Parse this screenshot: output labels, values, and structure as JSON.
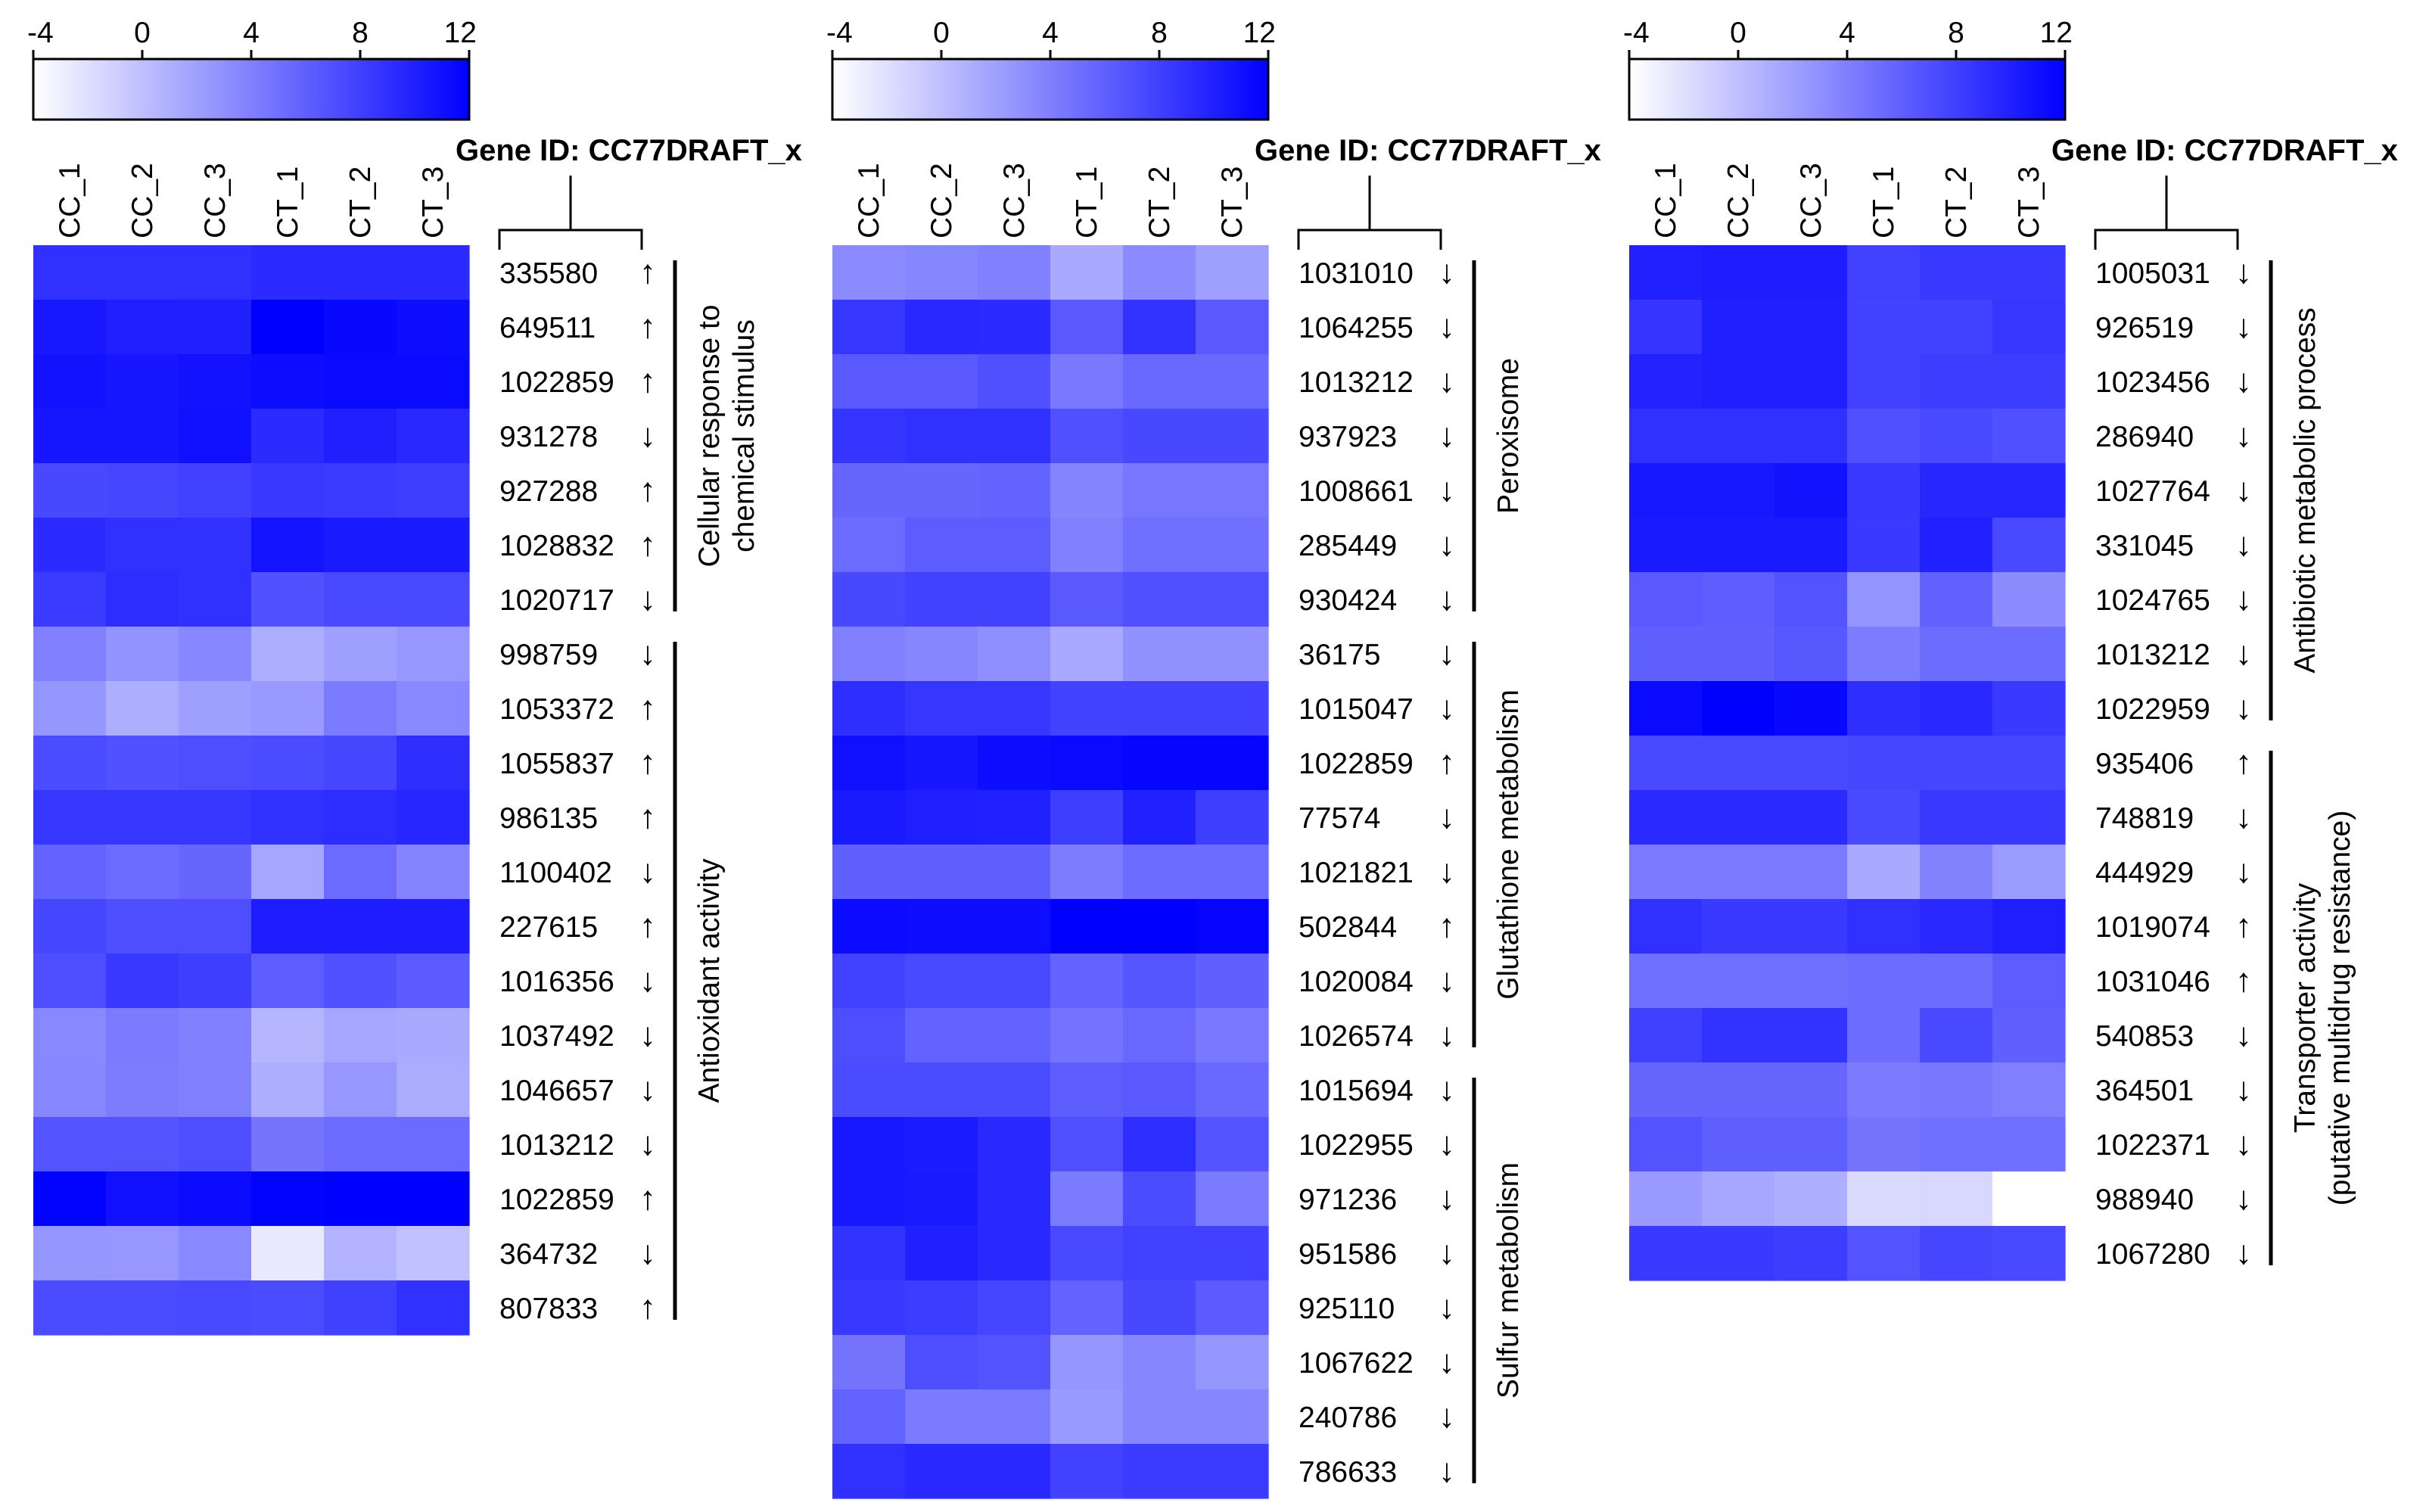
{
  "chart_data": [
    {
      "type": "heatmap",
      "colorbar": {
        "ticks": [
          "-4",
          "0",
          "4",
          "8",
          "12"
        ],
        "min": -4,
        "max": 12,
        "low_color": "#ffffff",
        "high_color": "#0000ff"
      },
      "columns": [
        "CC_1",
        "CC_2",
        "CC_3",
        "CT_1",
        "CT_2",
        "CT_3"
      ],
      "id_header": "Gene ID: CC77DRAFT_x",
      "rows": [
        {
          "id": "335580",
          "arrow": "↑",
          "values": [
            8.9,
            8.9,
            8.9,
            9.3,
            9.3,
            9.3
          ]
        },
        {
          "id": "649511",
          "arrow": "↑",
          "values": [
            10.5,
            10.1,
            10.0,
            12.5,
            11.5,
            11.1
          ]
        },
        {
          "id": "1022859",
          "arrow": "↑",
          "values": [
            10.9,
            10.6,
            10.9,
            11.2,
            11.4,
            11.4
          ]
        },
        {
          "id": "931278",
          "arrow": "↓",
          "values": [
            10.6,
            10.6,
            11.0,
            9.3,
            10.0,
            9.4
          ]
        },
        {
          "id": "927288",
          "arrow": "↑",
          "values": [
            7.5,
            7.6,
            7.9,
            8.5,
            8.3,
            8.1
          ]
        },
        {
          "id": "1028832",
          "arrow": "↑",
          "values": [
            9.3,
            9.0,
            9.0,
            10.8,
            10.4,
            10.4
          ]
        },
        {
          "id": "1020717",
          "arrow": "↓",
          "values": [
            8.3,
            9.2,
            8.9,
            6.9,
            7.4,
            7.4
          ]
        },
        {
          "id": "998759",
          "arrow": "↓",
          "values": [
            3.9,
            2.8,
            3.5,
            1.1,
            2.0,
            2.5
          ]
        },
        {
          "id": "1053372",
          "arrow": "↑",
          "values": [
            2.6,
            1.1,
            2.0,
            2.4,
            4.3,
            3.4
          ]
        },
        {
          "id": "1055837",
          "arrow": "↑",
          "values": [
            7.3,
            6.9,
            7.1,
            7.3,
            7.6,
            9.1
          ]
        },
        {
          "id": "986135",
          "arrow": "↑",
          "values": [
            8.6,
            8.6,
            8.6,
            9.0,
            9.2,
            9.6
          ]
        },
        {
          "id": "1100402",
          "arrow": "↓",
          "values": [
            5.8,
            5.3,
            5.6,
            1.6,
            5.3,
            3.7
          ]
        },
        {
          "id": "227615",
          "arrow": "↑",
          "values": [
            7.6,
            7.1,
            7.1,
            10.2,
            10.2,
            10.2
          ]
        },
        {
          "id": "1016356",
          "arrow": "↓",
          "values": [
            7.1,
            8.5,
            8.1,
            6.2,
            6.9,
            6.3
          ]
        },
        {
          "id": "1037492",
          "arrow": "↓",
          "values": [
            3.4,
            4.3,
            3.9,
            0.6,
            1.6,
            1.4
          ]
        },
        {
          "id": "1046657",
          "arrow": "↓",
          "values": [
            3.5,
            4.2,
            4.0,
            1.1,
            2.5,
            1.2
          ]
        },
        {
          "id": "1013212",
          "arrow": "↓",
          "values": [
            6.7,
            6.7,
            7.1,
            4.7,
            5.3,
            5.3
          ]
        },
        {
          "id": "1022859",
          "arrow": "↑",
          "values": [
            11.9,
            11.0,
            11.3,
            11.9,
            12.3,
            12.3
          ]
        },
        {
          "id": "364732",
          "arrow": "↓",
          "values": [
            2.6,
            2.5,
            3.4,
            -2.6,
            0.8,
            -0.1
          ]
        },
        {
          "id": "807833",
          "arrow": "↑",
          "values": [
            7.3,
            7.3,
            7.4,
            7.3,
            8.0,
            9.0
          ]
        }
      ],
      "groups": [
        {
          "lines": [
            "Cellular response to",
            "chemical stimulus"
          ],
          "start": 0,
          "end": 6
        },
        {
          "lines": [
            "Antioxidant activity"
          ],
          "start": 7,
          "end": 19
        }
      ]
    },
    {
      "type": "heatmap",
      "colorbar": {
        "ticks": [
          "-4",
          "0",
          "4",
          "8",
          "12"
        ],
        "min": -4,
        "max": 12,
        "low_color": "#ffffff",
        "high_color": "#0000ff"
      },
      "columns": [
        "CC_1",
        "CC_2",
        "CC_3",
        "CT_1",
        "CT_2",
        "CT_3"
      ],
      "id_header": "Gene ID: CC77DRAFT_x",
      "rows": [
        {
          "id": "1031010",
          "arrow": "↓",
          "values": [
            3.3,
            3.6,
            3.9,
            1.4,
            3.3,
            2.0
          ]
        },
        {
          "id": "1064255",
          "arrow": "↓",
          "values": [
            8.6,
            9.4,
            9.3,
            6.4,
            8.8,
            6.4
          ]
        },
        {
          "id": "1013212",
          "arrow": "↓",
          "values": [
            6.4,
            6.4,
            7.0,
            4.4,
            5.4,
            5.4
          ]
        },
        {
          "id": "937923",
          "arrow": "↓",
          "values": [
            8.7,
            8.9,
            8.9,
            7.0,
            7.5,
            7.5
          ]
        },
        {
          "id": "1008661",
          "arrow": "↓",
          "values": [
            5.6,
            5.6,
            5.8,
            3.7,
            4.6,
            4.6
          ]
        },
        {
          "id": "285449",
          "arrow": "↓",
          "values": [
            5.3,
            6.2,
            6.2,
            3.9,
            5.0,
            5.0
          ]
        },
        {
          "id": "930424",
          "arrow": "↓",
          "values": [
            7.5,
            7.8,
            7.8,
            6.4,
            7.0,
            7.0
          ]
        },
        {
          "id": "36175",
          "arrow": "↓",
          "values": [
            4.0,
            3.6,
            3.1,
            1.4,
            2.9,
            2.9
          ]
        },
        {
          "id": "1015047",
          "arrow": "↓",
          "values": [
            9.1,
            8.6,
            8.6,
            7.8,
            7.8,
            7.8
          ]
        },
        {
          "id": "1022859",
          "arrow": "↑",
          "values": [
            11.0,
            10.6,
            11.2,
            11.4,
            11.6,
            11.6
          ]
        },
        {
          "id": "77574",
          "arrow": "↓",
          "values": [
            10.4,
            10.1,
            9.9,
            8.1,
            9.9,
            8.1
          ]
        },
        {
          "id": "1021821",
          "arrow": "↓",
          "values": [
            6.0,
            6.0,
            6.0,
            4.2,
            5.2,
            5.2
          ]
        },
        {
          "id": "502844",
          "arrow": "↑",
          "values": [
            11.3,
            11.2,
            11.2,
            12.4,
            12.1,
            11.7
          ]
        },
        {
          "id": "1020084",
          "arrow": "↓",
          "values": [
            7.9,
            7.4,
            7.4,
            5.8,
            6.6,
            6.0
          ]
        },
        {
          "id": "1026574",
          "arrow": "↓",
          "values": [
            7.1,
            5.8,
            5.8,
            4.8,
            5.5,
            4.4
          ]
        },
        {
          "id": "1015694",
          "arrow": "↓",
          "values": [
            7.3,
            7.3,
            7.3,
            6.1,
            6.4,
            5.4
          ]
        },
        {
          "id": "1022955",
          "arrow": "↓",
          "values": [
            10.5,
            10.3,
            9.5,
            7.0,
            9.2,
            6.8
          ]
        },
        {
          "id": "971236",
          "arrow": "↓",
          "values": [
            10.5,
            10.4,
            9.4,
            4.3,
            7.3,
            4.3
          ]
        },
        {
          "id": "951586",
          "arrow": "↓",
          "values": [
            8.8,
            10.0,
            9.4,
            7.4,
            7.9,
            7.9
          ]
        },
        {
          "id": "925110",
          "arrow": "↓",
          "values": [
            8.5,
            8.2,
            7.7,
            5.8,
            7.5,
            6.3
          ]
        },
        {
          "id": "1067622",
          "arrow": "↓",
          "values": [
            4.7,
            7.1,
            6.7,
            2.6,
            3.6,
            2.6
          ]
        },
        {
          "id": "240786",
          "arrow": "↓",
          "values": [
            5.8,
            4.3,
            4.3,
            2.4,
            3.6,
            3.6
          ]
        },
        {
          "id": "786633",
          "arrow": "↓",
          "values": [
            8.9,
            9.4,
            9.4,
            7.9,
            8.3,
            8.3
          ]
        }
      ],
      "groups": [
        {
          "lines": [
            "Peroxisome"
          ],
          "start": 0,
          "end": 6
        },
        {
          "lines": [
            "Glutathione metabolism"
          ],
          "start": 7,
          "end": 14
        },
        {
          "lines": [
            "Sulfur metabolism"
          ],
          "start": 15,
          "end": 22
        }
      ]
    },
    {
      "type": "heatmap",
      "colorbar": {
        "ticks": [
          "-4",
          "0",
          "4",
          "8",
          "12"
        ],
        "min": -4,
        "max": 12,
        "low_color": "#ffffff",
        "high_color": "#0000ff"
      },
      "columns": [
        "CC_1",
        "CC_2",
        "CC_3",
        "CT_1",
        "CT_2",
        "CT_3"
      ],
      "id_header": "Gene ID: CC77DRAFT_x",
      "rows": [
        {
          "id": "1005031",
          "arrow": "↓",
          "values": [
            9.9,
            10.2,
            10.2,
            7.9,
            8.5,
            8.5
          ]
        },
        {
          "id": "926519",
          "arrow": "↓",
          "values": [
            8.7,
            10.0,
            10.0,
            7.8,
            7.9,
            8.6
          ]
        },
        {
          "id": "1023456",
          "arrow": "↓",
          "values": [
            9.8,
            10.0,
            10.0,
            7.9,
            8.2,
            8.2
          ]
        },
        {
          "id": "286940",
          "arrow": "↓",
          "values": [
            9.0,
            9.0,
            9.0,
            7.0,
            7.4,
            7.0
          ]
        },
        {
          "id": "1027764",
          "arrow": "↓",
          "values": [
            10.5,
            10.5,
            10.9,
            8.5,
            9.6,
            9.6
          ]
        },
        {
          "id": "331045",
          "arrow": "↓",
          "values": [
            10.4,
            10.4,
            10.4,
            8.4,
            9.9,
            7.4
          ]
        },
        {
          "id": "1024765",
          "arrow": "↓",
          "values": [
            6.4,
            6.1,
            6.8,
            2.7,
            5.9,
            3.2
          ]
        },
        {
          "id": "1013212",
          "arrow": "↓",
          "values": [
            6.0,
            6.0,
            6.5,
            4.2,
            5.2,
            5.2
          ]
        },
        {
          "id": "1022959",
          "arrow": "↓",
          "values": [
            11.4,
            12.4,
            11.5,
            9.1,
            9.4,
            8.4
          ]
        },
        {
          "id": "935406",
          "arrow": "↑",
          "values": [
            7.4,
            7.4,
            7.4,
            7.6,
            7.6,
            7.6
          ]
        },
        {
          "id": "748819",
          "arrow": "↓",
          "values": [
            9.3,
            9.3,
            9.3,
            7.4,
            8.4,
            8.4
          ]
        },
        {
          "id": "444929",
          "arrow": "↓",
          "values": [
            4.3,
            4.3,
            4.3,
            1.4,
            3.8,
            2.2
          ]
        },
        {
          "id": "1019074",
          "arrow": "↑",
          "values": [
            8.9,
            8.4,
            8.4,
            9.0,
            9.4,
            10.1
          ]
        },
        {
          "id": "1031046",
          "arrow": "↑",
          "values": [
            5.0,
            5.0,
            5.0,
            5.2,
            5.2,
            6.2
          ]
        },
        {
          "id": "540853",
          "arrow": "↓",
          "values": [
            8.0,
            8.8,
            8.8,
            5.2,
            7.4,
            6.0
          ]
        },
        {
          "id": "364501",
          "arrow": "↓",
          "values": [
            5.6,
            5.6,
            5.6,
            4.3,
            4.5,
            4.0
          ]
        },
        {
          "id": "1022371",
          "arrow": "↓",
          "values": [
            6.7,
            6.0,
            6.0,
            4.7,
            5.0,
            5.0
          ]
        },
        {
          "id": "988940",
          "arrow": "↓",
          "values": [
            2.4,
            1.5,
            1.0,
            -1.7,
            -1.5,
            -4.0
          ]
        },
        {
          "id": "1067280",
          "arrow": "↓",
          "values": [
            8.4,
            8.4,
            8.2,
            6.7,
            7.6,
            7.4
          ]
        }
      ],
      "groups": [
        {
          "lines": [
            "Antibiotic metabolic process"
          ],
          "start": 0,
          "end": 8
        },
        {
          "lines": [
            "Transporter activity",
            "(putative multidrug resistance)"
          ],
          "start": 9,
          "end": 18
        }
      ]
    }
  ]
}
